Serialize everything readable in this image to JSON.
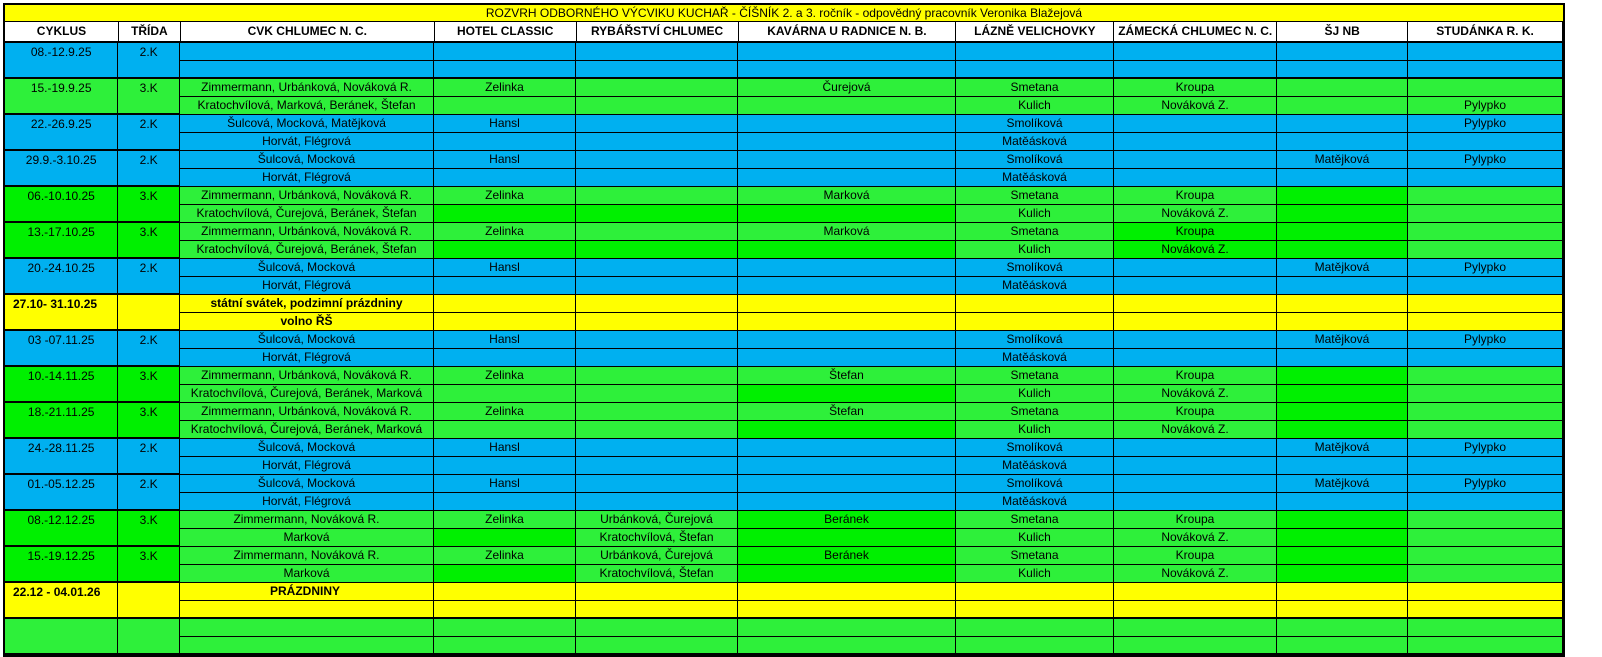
{
  "title": "ROZVRH ODBORNÉHO VÝCVIKU KUCHAŘ - ČÍŠNÍK  2. a 3. ročník - odpovědný pracovník Veronika Blažejová",
  "colors": {
    "blue": "#00b0f0",
    "green": "#2ef03a",
    "bright_green": "#00f000",
    "yellow": "#ffff00"
  },
  "headers": [
    "CYKLUS",
    "TŘÍDA",
    "CVK CHLUMEC N. C.",
    "HOTEL CLASSIC",
    "RYBÁŘSTVÍ CHLUMEC",
    "KAVÁRNA U RADNICE N. B.",
    "LÁZNĚ VELICHOVKY",
    "ZÁMECKÁ CHLUMEC N. C.",
    "ŠJ NB",
    "STUDÁNKA R. K."
  ],
  "rows": [
    {
      "cyklus": "08.-12.9.25",
      "trida": "2.K",
      "color": "blue",
      "lines": [
        [
          "",
          "",
          "",
          "",
          "",
          "",
          "",
          ""
        ],
        [
          "",
          "",
          "",
          "",
          "",
          "",
          "",
          ""
        ]
      ]
    },
    {
      "cyklus": "15.-19.9.25",
      "trida": "3.K",
      "color": "green",
      "lines": [
        [
          "Zimmermann, Urbánková, Nováková R.",
          "Zelinka",
          "",
          "Čurejová",
          "Smetana",
          "Kroupa",
          "",
          ""
        ],
        [
          "Kratochvílová, Marková, Beránek, Štefan",
          "",
          "",
          "",
          "Kulich",
          "Nováková Z.",
          "",
          "Pylypko"
        ]
      ]
    },
    {
      "cyklus": "22.-26.9.25",
      "trida": "2.K",
      "color": "blue",
      "lines": [
        [
          "Šulcová, Mocková, Matějková",
          "Hansl",
          "",
          "",
          "Smolíková",
          "",
          "",
          "Pylypko"
        ],
        [
          "Horvát, Flégrová",
          "",
          "",
          "",
          "Matěásková",
          "",
          "",
          ""
        ]
      ]
    },
    {
      "cyklus": "29.9.-3.10.25",
      "trida": "2.K",
      "color": "blue",
      "lines": [
        [
          "Šulcová, Mocková",
          "Hansl",
          "",
          "",
          "Smolíková",
          "",
          "Matějková",
          "Pylypko"
        ],
        [
          "Horvát, Flégrová",
          "",
          "",
          "",
          "Matěásková",
          "",
          "",
          ""
        ]
      ]
    },
    {
      "cyklus": "06.-10.10.25",
      "trida": "3.K",
      "color": "green",
      "bright_fixed": true,
      "bright_cols": [
        [
          8
        ],
        [
          3,
          4,
          5,
          8
        ]
      ],
      "lines": [
        [
          "Zimmermann, Urbánková, Nováková R.",
          "Zelinka",
          "",
          "Marková",
          "Smetana",
          "Kroupa",
          "",
          ""
        ],
        [
          "Kratochvílová, Čurejová, Beránek, Štefan",
          "",
          "",
          "",
          "Kulich",
          "Nováková Z.",
          "",
          ""
        ]
      ]
    },
    {
      "cyklus": "13.-17.10.25",
      "trida": "3.K",
      "color": "green",
      "bright_fixed": true,
      "bright_cols": [
        [
          7,
          8
        ],
        [
          3,
          4,
          5,
          7,
          8
        ]
      ],
      "lines": [
        [
          "Zimmermann, Urbánková, Nováková R.",
          "Zelinka",
          "",
          "Marková",
          "Smetana",
          "Kroupa",
          "",
          ""
        ],
        [
          "Kratochvílová, Čurejová, Beránek, Štefan",
          "",
          "",
          "",
          "Kulich",
          "Nováková Z.",
          "",
          ""
        ]
      ]
    },
    {
      "cyklus": "20.-24.10.25",
      "trida": "2.K",
      "color": "blue",
      "lines": [
        [
          "Šulcová, Mocková",
          "Hansl",
          "",
          "",
          "Smolíková",
          "",
          "Matějková",
          "Pylypko"
        ],
        [
          "Horvát, Flégrová",
          "",
          "",
          "",
          "Matěásková",
          "",
          "",
          ""
        ]
      ]
    },
    {
      "cyklus": "27.10- 31.10.25",
      "trida": "",
      "color": "yellow",
      "bold": true,
      "lines": [
        [
          "státní svátek, podzimní prázdniny",
          "",
          "",
          "",
          "",
          "",
          "",
          ""
        ],
        [
          "volno ŘŠ",
          "",
          "",
          "",
          "",
          "",
          "",
          ""
        ]
      ]
    },
    {
      "cyklus": "03 -07.11.25",
      "trida": "2.K",
      "color": "blue",
      "lines": [
        [
          "Šulcová, Mocková",
          "Hansl",
          "",
          "",
          "Smolíková",
          "",
          "Matějková",
          "Pylypko"
        ],
        [
          "Horvát, Flégrová",
          "",
          "",
          "",
          "Matěásková",
          "",
          "",
          ""
        ]
      ]
    },
    {
      "cyklus": "10.-14.11.25",
      "trida": "3.K",
      "color": "green",
      "bright_fixed": true,
      "bright_cols": [
        [
          8
        ],
        [
          5,
          8
        ]
      ],
      "lines": [
        [
          "Zimmermann, Urbánková, Nováková R.",
          "Zelinka",
          "",
          "Štefan",
          "Smetana",
          "Kroupa",
          "",
          ""
        ],
        [
          "Kratochvílová, Čurejová, Beránek, Marková",
          "",
          "",
          "",
          "Kulich",
          "Nováková Z.",
          "",
          ""
        ]
      ]
    },
    {
      "cyklus": "18.-21.11.25",
      "trida": "3.K",
      "color": "green",
      "bright_fixed": true,
      "bright_cols": [
        [
          8
        ],
        [
          5,
          8
        ]
      ],
      "lines": [
        [
          "Zimmermann, Urbánková, Nováková R.",
          "Zelinka",
          "",
          "Štefan",
          "Smetana",
          "Kroupa",
          "",
          ""
        ],
        [
          "Kratochvílová, Čurejová, Beránek, Marková",
          "",
          "",
          "",
          "Kulich",
          "Nováková Z.",
          "",
          ""
        ]
      ]
    },
    {
      "cyklus": "24.-28.11.25",
      "trida": "2.K",
      "color": "blue",
      "lines": [
        [
          "Šulcová, Mocková",
          "Hansl",
          "",
          "",
          "Smolíková",
          "",
          "Matějková",
          "Pylypko"
        ],
        [
          "Horvát, Flégrová",
          "",
          "",
          "",
          "Matěásková",
          "",
          "",
          ""
        ]
      ]
    },
    {
      "cyklus": "01.-05.12.25",
      "trida": "2.K",
      "color": "blue",
      "lines": [
        [
          "Šulcová, Mocková",
          "Hansl",
          "",
          "",
          "Smolíková",
          "",
          "Matějková",
          "Pylypko"
        ],
        [
          "Horvát, Flégrová",
          "",
          "",
          "",
          "Matěásková",
          "",
          "",
          ""
        ]
      ]
    },
    {
      "cyklus": "08.-12.12.25",
      "trida": "3.K",
      "color": "green",
      "bright_fixed": true,
      "bright_cols": [
        [
          5,
          8
        ],
        [
          3,
          5,
          8
        ]
      ],
      "lines": [
        [
          "Zimmermann, Nováková R.",
          "Zelinka",
          "Urbánková, Čurejová",
          "Beránek",
          "Smetana",
          "Kroupa",
          "",
          ""
        ],
        [
          "Marková",
          "",
          "Kratochvílová, Štefan",
          "",
          "Kulich",
          "Nováková Z.",
          "",
          ""
        ]
      ]
    },
    {
      "cyklus": "15.-19.12.25",
      "trida": "3.K",
      "color": "green",
      "bright_fixed": true,
      "bright_cols": [
        [
          5,
          8
        ],
        [
          3,
          5,
          8
        ]
      ],
      "lines": [
        [
          "Zimmermann, Nováková R.",
          "Zelinka",
          "Urbánková, Čurejová",
          "Beránek",
          "Smetana",
          "Kroupa",
          "",
          ""
        ],
        [
          "Marková",
          "",
          "Kratochvílová, Štefan",
          "",
          "Kulich",
          "Nováková Z.",
          "",
          ""
        ]
      ]
    },
    {
      "cyklus": "22.12 - 04.01.26",
      "trida": "",
      "color": "yellow",
      "bold": true,
      "lines": [
        [
          "PRÁZDNINY",
          "",
          "",
          "",
          "",
          "",
          "",
          ""
        ],
        [
          "",
          "",
          "",
          "",
          "",
          "",
          "",
          ""
        ]
      ]
    },
    {
      "cyklus": "",
      "trida": "",
      "color": "green",
      "lines": [
        [
          "",
          "",
          "",
          "",
          "",
          "",
          "",
          ""
        ],
        [
          "",
          "",
          "",
          "",
          "",
          "",
          "",
          ""
        ]
      ]
    }
  ]
}
